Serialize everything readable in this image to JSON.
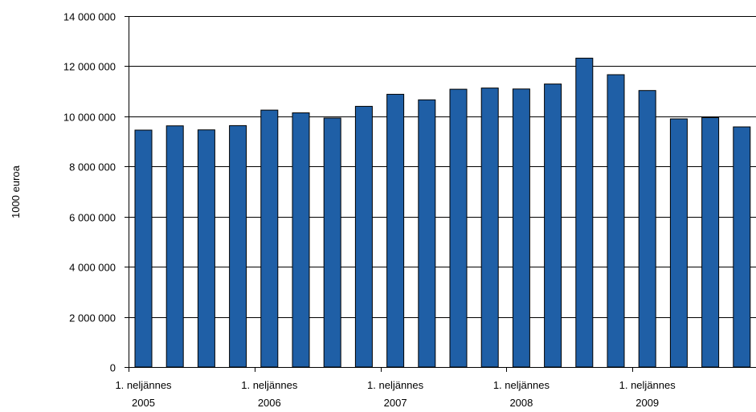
{
  "chart_data": {
    "type": "bar",
    "ylabel": "1000 euroa",
    "ylim": [
      0,
      14000000
    ],
    "yticks": [
      {
        "value": 0,
        "label": "0"
      },
      {
        "value": 2000000,
        "label": "2 000 000"
      },
      {
        "value": 4000000,
        "label": "4 000 000"
      },
      {
        "value": 6000000,
        "label": "6 000 000"
      },
      {
        "value": 8000000,
        "label": "8 000 000"
      },
      {
        "value": 10000000,
        "label": "10 000 000"
      },
      {
        "value": 12000000,
        "label": "12 000 000"
      },
      {
        "value": 14000000,
        "label": "14 000 000"
      }
    ],
    "grid": true,
    "values": [
      9450000,
      9620000,
      9460000,
      9630000,
      10250000,
      10140000,
      9930000,
      10400000,
      10880000,
      10660000,
      11080000,
      11130000,
      11090000,
      11290000,
      12320000,
      11660000,
      11030000,
      9900000,
      9950000,
      9580000
    ],
    "x_labels": [
      {
        "index": 0,
        "line1": "1. neljännes",
        "line2": "2005"
      },
      {
        "index": 4,
        "line1": "1. neljännes",
        "line2": "2006"
      },
      {
        "index": 8,
        "line1": "1. neljännes",
        "line2": "2007"
      },
      {
        "index": 12,
        "line1": "1. neljännes",
        "line2": "2008"
      },
      {
        "index": 16,
        "line1": "1. neljännes",
        "line2": "2009"
      }
    ],
    "bar_color": "#1f5fa6",
    "bar_stroke": "#000000"
  }
}
